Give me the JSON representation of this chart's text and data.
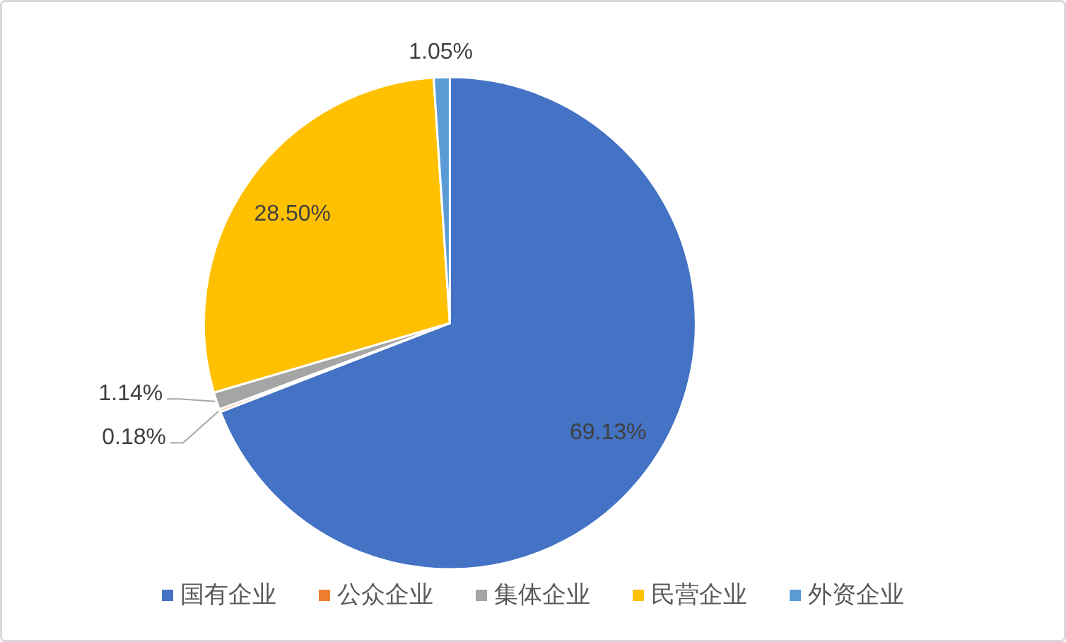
{
  "chart_data": {
    "type": "pie",
    "categories": [
      "国有企业",
      "公众企业",
      "集体企业",
      "民营企业",
      "外资企业"
    ],
    "values": [
      69.13,
      0.18,
      1.14,
      28.5,
      1.05
    ],
    "colors": [
      "#4472c4",
      "#ed7d31",
      "#a5a5a5",
      "#ffc000",
      "#5b9bd5"
    ],
    "value_labels": [
      "69.13%",
      "0.18%",
      "1.14%",
      "28.50%",
      "1.05%"
    ],
    "legend": "bottom"
  }
}
